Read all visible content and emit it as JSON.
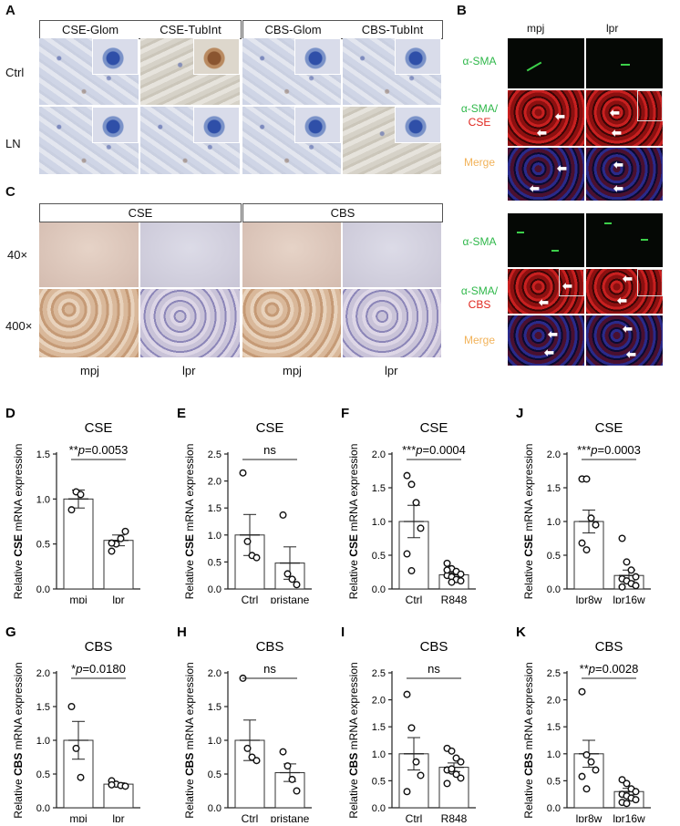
{
  "panels": {
    "A": "A",
    "B": "B",
    "C": "C"
  },
  "a": {
    "headers": [
      "CSE-Glom",
      "CSE-TubInt",
      "CBS-Glom",
      "CBS-TubInt"
    ],
    "rows": [
      "Ctrl",
      "LN"
    ]
  },
  "b": {
    "cols": [
      "mpj",
      "lpr"
    ],
    "rows1": [
      "α-SMA",
      "α-SMA/",
      "CSE",
      "Merge"
    ],
    "rows2": [
      "α-SMA",
      "α-SMA/",
      "CBS",
      "Merge"
    ],
    "arrow": "⬅"
  },
  "c": {
    "headers": [
      "CSE",
      "CBS"
    ],
    "rows": [
      "40×",
      "400×"
    ],
    "xlabels": [
      "mpj",
      "lpr",
      "mpj",
      "lpr"
    ]
  },
  "chart_data": [
    {
      "id": "D",
      "type": "bar",
      "title": "CSE",
      "gene": "CSE",
      "categories": [
        "mpj",
        "lpr"
      ],
      "means": [
        1.0,
        0.54
      ],
      "sem": [
        0.1,
        0.06
      ],
      "points": [
        [
          0.88,
          1.08,
          1.05
        ],
        [
          0.42,
          0.5,
          0.56,
          0.64,
          0.51
        ]
      ],
      "ylim": [
        0,
        1.5
      ],
      "yticks": [
        "0.0",
        "0.5",
        "1.0",
        "1.5"
      ],
      "sig": "**",
      "p": "p=0.0053"
    },
    {
      "id": "E",
      "type": "bar",
      "title": "CSE",
      "gene": "CSE",
      "categories": [
        "Ctrl",
        "pristane"
      ],
      "means": [
        1.0,
        0.48
      ],
      "sem": [
        0.38,
        0.3
      ],
      "points": [
        [
          2.15,
          0.88,
          0.62,
          0.58
        ],
        [
          1.37,
          0.28,
          0.18,
          0.08
        ]
      ],
      "ylim": [
        0,
        2.5
      ],
      "yticks": [
        "0.0",
        "0.5",
        "1.0",
        "1.5",
        "2.0",
        "2.5"
      ],
      "sig": "ns",
      "p": ""
    },
    {
      "id": "F",
      "type": "bar",
      "title": "CSE",
      "gene": "CSE",
      "categories": [
        "Ctrl",
        "R848"
      ],
      "means": [
        1.0,
        0.21
      ],
      "sem": [
        0.24,
        0.03
      ],
      "points": [
        [
          1.68,
          1.55,
          1.28,
          0.9,
          0.52,
          0.27
        ],
        [
          0.38,
          0.3,
          0.26,
          0.22,
          0.2,
          0.18,
          0.14,
          0.12,
          0.28,
          0.1
        ]
      ],
      "ylim": [
        0,
        2.0
      ],
      "yticks": [
        "0.0",
        "0.5",
        "1.0",
        "1.5",
        "2.0"
      ],
      "sig": "***",
      "p": "p=0.0004"
    },
    {
      "id": "J",
      "type": "bar",
      "title": "CSE",
      "gene": "CSE",
      "categories": [
        "lpr8w",
        "lpr16w"
      ],
      "means": [
        1.0,
        0.2
      ],
      "sem": [
        0.17,
        0.08
      ],
      "points": [
        [
          1.63,
          1.63,
          1.05,
          0.95,
          0.68,
          0.58
        ],
        [
          0.75,
          0.4,
          0.28,
          0.18,
          0.15,
          0.12,
          0.08,
          0.05,
          0.03
        ]
      ],
      "ylim": [
        0,
        2.0
      ],
      "yticks": [
        "0.0",
        "0.5",
        "1.0",
        "1.5",
        "2.0"
      ],
      "sig": "***",
      "p": "p=0.0003"
    },
    {
      "id": "G",
      "type": "bar",
      "title": "CBS",
      "gene": "CBS",
      "categories": [
        "mpj",
        "lpr"
      ],
      "means": [
        1.0,
        0.35
      ],
      "sem": [
        0.28,
        0.02
      ],
      "points": [
        [
          1.5,
          0.88,
          0.45
        ],
        [
          0.4,
          0.35,
          0.33,
          0.32,
          0.34
        ]
      ],
      "ylim": [
        0,
        2.0
      ],
      "yticks": [
        "0.0",
        "0.5",
        "1.0",
        "1.5",
        "2.0"
      ],
      "sig": "*",
      "p": "p=0.0180"
    },
    {
      "id": "H",
      "type": "bar",
      "title": "CBS",
      "gene": "CBS",
      "categories": [
        "Ctrl",
        "pristane"
      ],
      "means": [
        1.0,
        0.52
      ],
      "sem": [
        0.3,
        0.13
      ],
      "points": [
        [
          1.92,
          0.88,
          0.75,
          0.7
        ],
        [
          0.83,
          0.62,
          0.42,
          0.25
        ]
      ],
      "ylim": [
        0,
        2.0
      ],
      "yticks": [
        "0.0",
        "0.5",
        "1.0",
        "1.5",
        "2.0"
      ],
      "sig": "ns",
      "p": ""
    },
    {
      "id": "I",
      "type": "bar",
      "title": "CBS",
      "gene": "CBS",
      "categories": [
        "Ctrl",
        "R848"
      ],
      "means": [
        1.0,
        0.75
      ],
      "sem": [
        0.3,
        0.08
      ],
      "points": [
        [
          2.1,
          1.48,
          0.85,
          0.6,
          0.3
        ],
        [
          1.1,
          1.05,
          0.92,
          0.85,
          0.7,
          0.68,
          0.62,
          0.55,
          0.45,
          0.72
        ]
      ],
      "ylim": [
        0,
        2.5
      ],
      "yticks": [
        "0.0",
        "0.5",
        "1.0",
        "1.5",
        "2.0",
        "2.5"
      ],
      "sig": "ns",
      "p": ""
    },
    {
      "id": "K",
      "type": "bar",
      "title": "CBS",
      "gene": "CBS",
      "categories": [
        "lpr8w",
        "lpr16w"
      ],
      "means": [
        1.0,
        0.3
      ],
      "sem": [
        0.25,
        0.06
      ],
      "points": [
        [
          2.15,
          0.98,
          0.85,
          0.7,
          0.58,
          0.35
        ],
        [
          0.52,
          0.45,
          0.35,
          0.3,
          0.25,
          0.22,
          0.18,
          0.15,
          0.1,
          0.08
        ]
      ],
      "ylim": [
        0,
        2.5
      ],
      "yticks": [
        "0.0",
        "0.5",
        "1.0",
        "1.5",
        "2.0",
        "2.5"
      ],
      "sig": "**",
      "p": "p=0.0028"
    }
  ],
  "ylabel_pre": "Relative ",
  "ylabel_post": " mRNA expression"
}
